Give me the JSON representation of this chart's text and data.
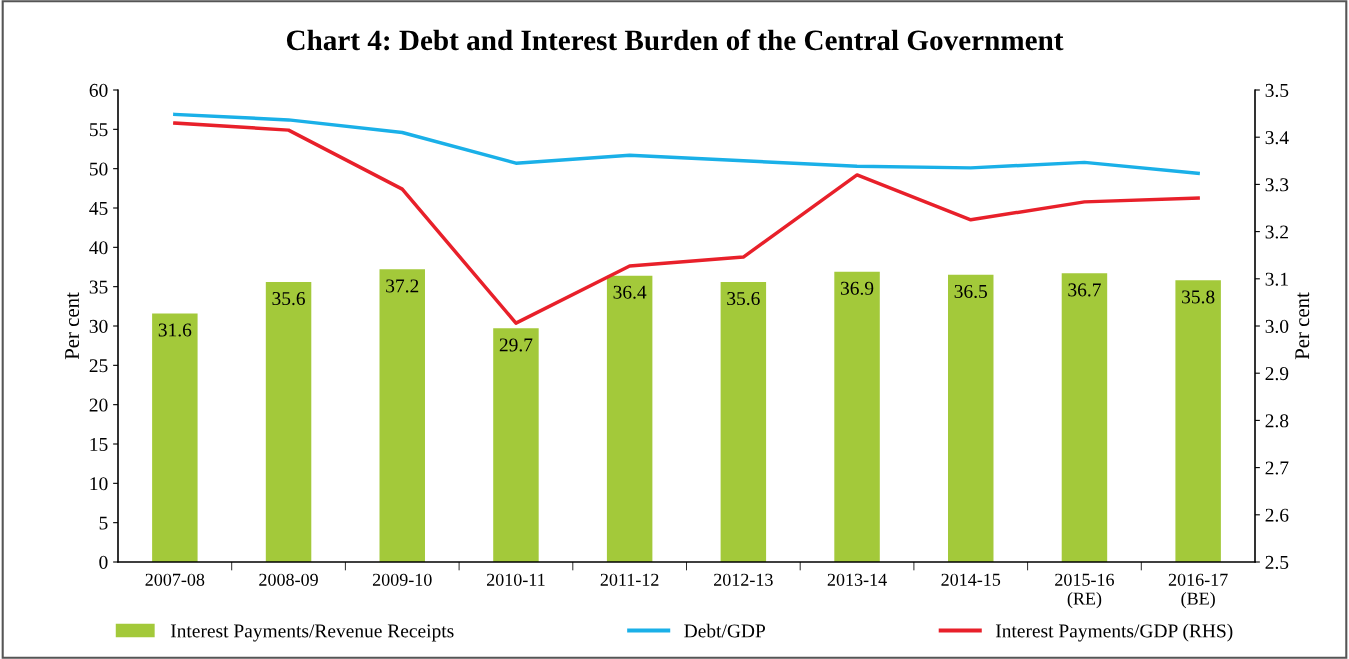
{
  "chart_data": {
    "type": "bar",
    "title": "Chart 4: Debt and Interest Burden of the Central Government",
    "ylabel": "Per cent",
    "y2label": "Per cent",
    "categories": [
      "2007-08",
      "2008-09",
      "2009-10",
      "2010-11",
      "2011-12",
      "2012-13",
      "2013-14",
      "2014-15",
      "2015-16\n(RE)",
      "2016-17\n(BE)"
    ],
    "series": [
      {
        "name": "Interest Payments/Revenue Receipts",
        "color": "#a3c93a",
        "values": [
          31.6,
          35.6,
          37.2,
          29.7,
          36.4,
          35.6,
          36.9,
          36.5,
          36.7,
          35.8
        ],
        "value_labels": [
          "31.6",
          "35.6",
          "37.2",
          "29.7",
          "36.4",
          "35.6",
          "36.9",
          "36.5",
          "36.7",
          "35.8"
        ]
      },
      {
        "name": "Debt/GDP",
        "type": "line",
        "color": "#1ab0e8",
        "values": [
          56.9,
          56.2,
          54.6,
          50.7,
          51.7,
          51.0,
          50.3,
          50.1,
          50.8,
          49.4
        ]
      },
      {
        "name": "Interest Payments/GDP (RHS)",
        "type": "line",
        "axis": "y2",
        "color": "#e8202a",
        "values": [
          3.43,
          3.415,
          3.29,
          3.006,
          3.127,
          3.146,
          3.32,
          3.225,
          3.263,
          3.271
        ]
      }
    ],
    "ylim": [
      0,
      60
    ],
    "yticks": [
      0,
      5,
      10,
      15,
      20,
      25,
      30,
      35,
      40,
      45,
      50,
      55,
      60
    ],
    "y2lim": [
      2.5,
      3.5
    ],
    "y2ticks": [
      {
        "value": 2.5,
        "label": "2.5"
      },
      {
        "value": 2.6,
        "label": "2.6"
      },
      {
        "value": 2.7,
        "label": "2.7"
      },
      {
        "value": 2.8,
        "label": "2.8"
      },
      {
        "value": 2.9,
        "label": "2.9"
      },
      {
        "value": 3.0,
        "label": "3.0"
      },
      {
        "value": 3.1,
        "label": "3.1"
      },
      {
        "value": 3.2,
        "label": "3.2"
      },
      {
        "value": 3.3,
        "label": "3.3"
      },
      {
        "value": 3.4,
        "label": "3.4"
      },
      {
        "value": 3.5,
        "label": "3.5"
      }
    ],
    "legend": "bottom",
    "grid": false,
    "marker": "none",
    "line_style": "solid"
  }
}
